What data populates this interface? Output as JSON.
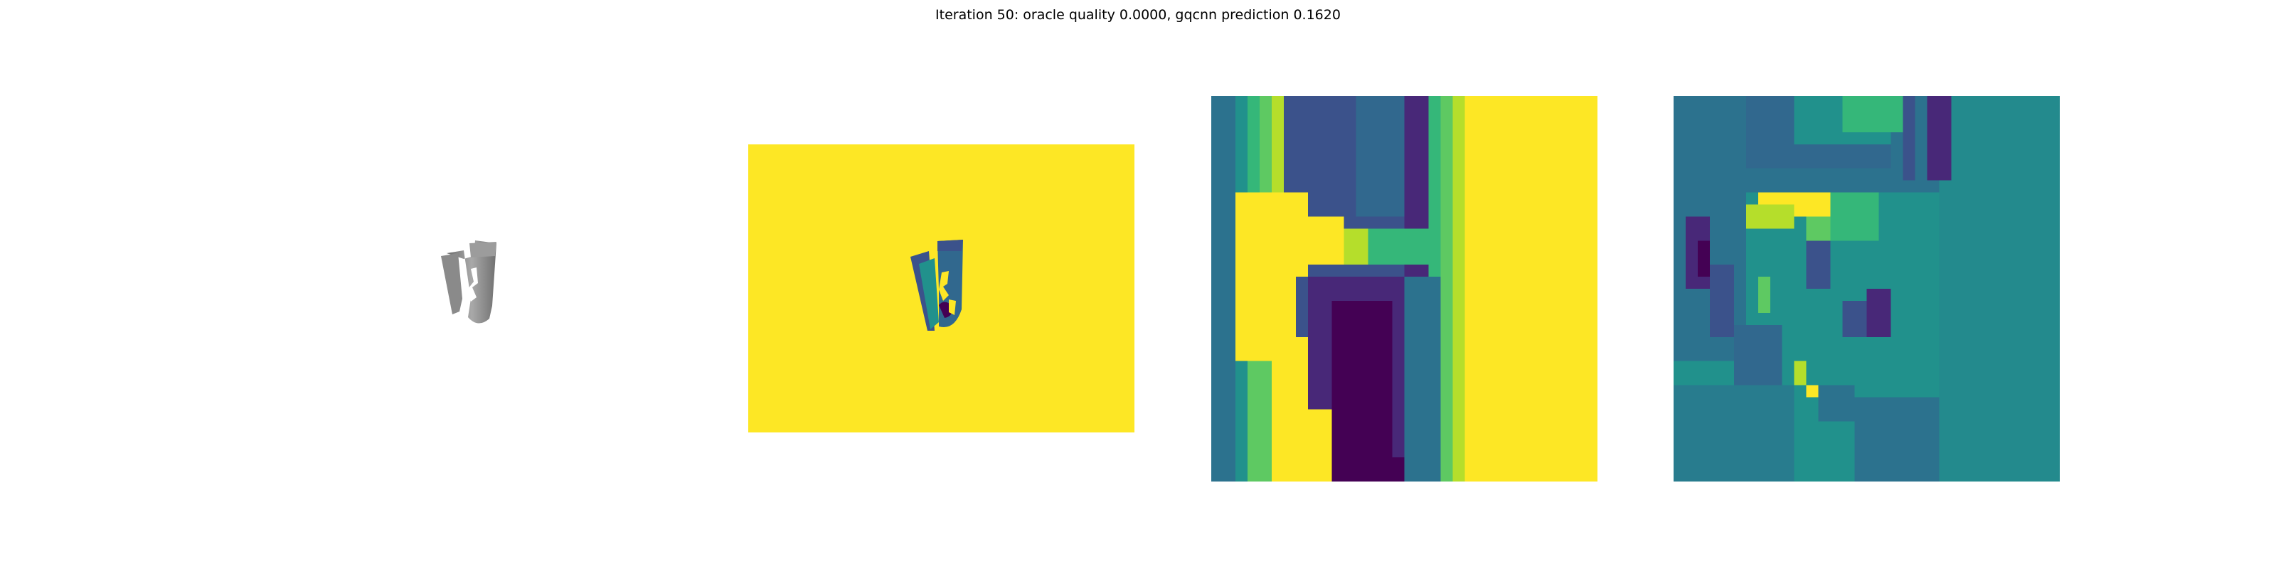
{
  "figure": {
    "title": "Iteration 50: oracle quality 0.0000, gqcnn prediction 0.1620"
  },
  "palette": {
    "yellow": "#fde725",
    "teal": "#21918c",
    "blue": "#3b528b",
    "purple": "#440154",
    "green": "#5ec962",
    "gray": "#7f7f7f"
  }
}
